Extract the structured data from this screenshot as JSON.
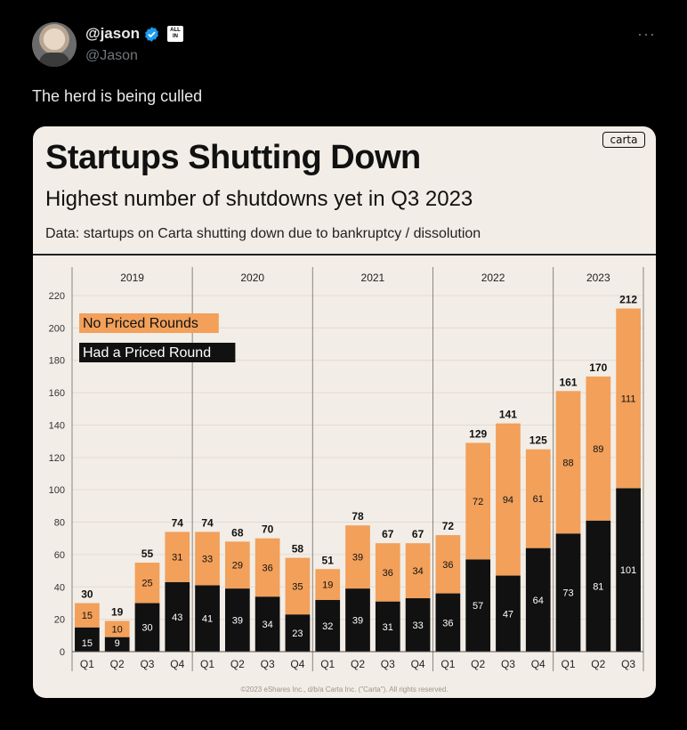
{
  "tweet": {
    "display_name": "@jason",
    "handle": "@Jason",
    "badge": "ALL IN",
    "text": "The herd is being culled",
    "more_icon": "more-icon"
  },
  "card": {
    "title": "Startups Shutting Down",
    "subtitle": "Highest number of shutdowns yet in Q3 2023",
    "data_note": "Data: startups on Carta shutting down due to bankruptcy / dissolution",
    "logo": "carta",
    "copyright": "©2023 eShares Inc., d/b/a Carta Inc. (\"Carta\"). All rights reserved."
  },
  "colors": {
    "orange": "#f2a05a",
    "black": "#111111",
    "card_bg": "#f2ede6",
    "verified": "#1d9bf0"
  },
  "chart_data": {
    "type": "bar",
    "stacked": true,
    "years": [
      "2019",
      "2020",
      "2021",
      "2022",
      "2023"
    ],
    "categories": [
      "Q1",
      "Q2",
      "Q3",
      "Q4",
      "Q1",
      "Q2",
      "Q3",
      "Q4",
      "Q1",
      "Q2",
      "Q3",
      "Q4",
      "Q1",
      "Q2",
      "Q3",
      "Q4",
      "Q1",
      "Q2",
      "Q3"
    ],
    "year_of_category": [
      0,
      0,
      0,
      0,
      1,
      1,
      1,
      1,
      2,
      2,
      2,
      2,
      3,
      3,
      3,
      3,
      4,
      4,
      4
    ],
    "series": [
      {
        "name": "Had a Priced Round",
        "color": "#111111",
        "values": [
          15,
          9,
          30,
          43,
          41,
          39,
          34,
          23,
          32,
          39,
          31,
          33,
          36,
          57,
          47,
          64,
          73,
          81,
          101
        ]
      },
      {
        "name": "No Priced Rounds",
        "color": "#f2a05a",
        "values": [
          15,
          10,
          25,
          31,
          33,
          29,
          36,
          35,
          19,
          39,
          36,
          34,
          36,
          72,
          94,
          61,
          88,
          89,
          111
        ]
      }
    ],
    "totals": [
      30,
      19,
      55,
      74,
      74,
      68,
      70,
      58,
      51,
      78,
      67,
      67,
      72,
      129,
      141,
      125,
      161,
      170,
      212
    ],
    "yticks": [
      0,
      20,
      40,
      60,
      80,
      100,
      120,
      140,
      160,
      180,
      200,
      220
    ],
    "ylim": [
      0,
      220
    ],
    "grid": true,
    "legend_position": "top-left"
  }
}
